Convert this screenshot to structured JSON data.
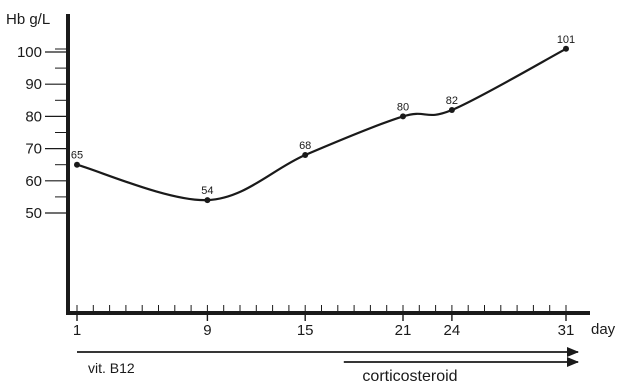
{
  "chart_data": {
    "type": "line",
    "ylabel": "Hb g/L",
    "xlabel": "day",
    "x_ticks": [
      1,
      9,
      15,
      21,
      24,
      31
    ],
    "y_ticks": [
      50,
      60,
      70,
      80,
      90,
      100
    ],
    "xlim": [
      1,
      31
    ],
    "ylim": [
      0,
      106
    ],
    "grid": false,
    "series": [
      {
        "x": [
          1,
          9,
          15,
          21,
          24,
          31
        ],
        "values": [
          65,
          54,
          68,
          80,
          82,
          101
        ],
        "point_labels": [
          "65",
          "54",
          "68",
          "80",
          "82",
          "101"
        ]
      }
    ],
    "treatments": [
      {
        "label": "vit. B12",
        "start_day": 1,
        "end_day": 31
      },
      {
        "label": "corticosteroid",
        "start_day": 17,
        "end_day": 31
      }
    ]
  }
}
